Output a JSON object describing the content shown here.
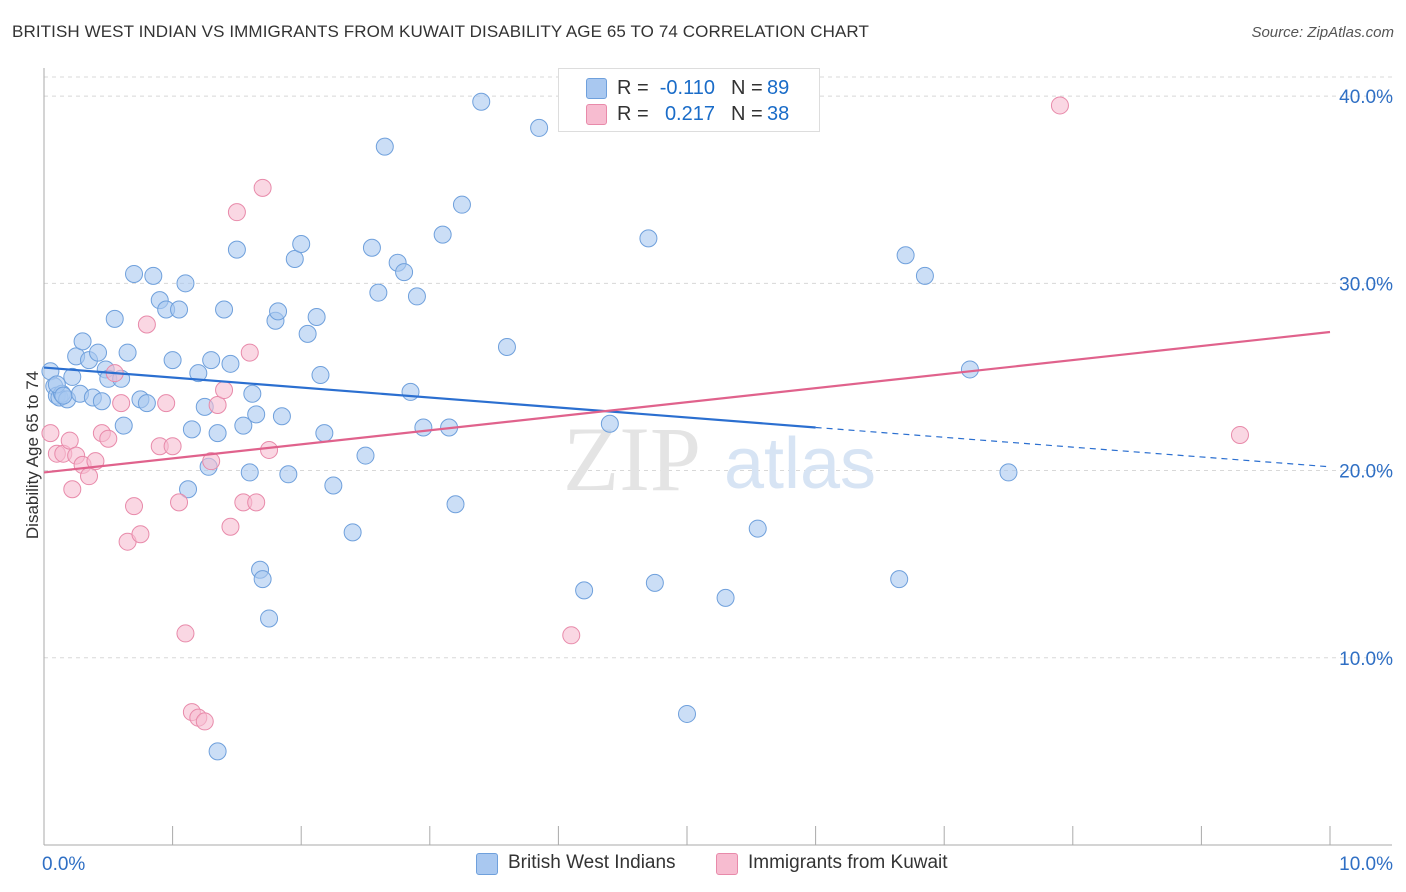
{
  "title": "BRITISH WEST INDIAN VS IMMIGRANTS FROM KUWAIT DISABILITY AGE 65 TO 74 CORRELATION CHART",
  "source": "Source: ZipAtlas.com",
  "watermark": {
    "zip": "ZIP",
    "atlas": "atlas"
  },
  "legend": {
    "rows": [
      {
        "r_label": "R =",
        "r_value": "-0.110",
        "n_label": "N =",
        "n_value": "89",
        "color": "#a9c8f0",
        "border": "#6fa0dc"
      },
      {
        "r_label": "R =",
        "r_value": "0.217",
        "n_label": "N =",
        "n_value": "38",
        "color": "#f7bcd0",
        "border": "#e88aaa"
      }
    ]
  },
  "bottom_legend": [
    {
      "label": "British West Indians",
      "color": "#a9c8f0",
      "border": "#6fa0dc"
    },
    {
      "label": "Immigrants from Kuwait",
      "color": "#f7bcd0",
      "border": "#e88aaa"
    }
  ],
  "chart_data": {
    "type": "scatter",
    "title": "BRITISH WEST INDIAN VS IMMIGRANTS FROM KUWAIT DISABILITY AGE 65 TO 74 CORRELATION CHART",
    "xlabel": "",
    "ylabel": "Disability Age 65 to 74",
    "xlim": [
      0,
      10
    ],
    "ylim": [
      0,
      41.5
    ],
    "x_tick_labels": [
      "0.0%",
      "10.0%"
    ],
    "y_ticks": [
      10,
      20,
      30,
      40
    ],
    "y_tick_labels": [
      "10.0%",
      "20.0%",
      "30.0%",
      "40.0%"
    ],
    "grid": true,
    "legend_position": "top-center",
    "series": [
      {
        "name": "British West Indians",
        "color": "#6fa0dc",
        "fill": "#a9c8f0",
        "trend": {
          "x": [
            0,
            6
          ],
          "y": [
            25.5,
            22.3
          ],
          "dashed_extension": {
            "x": [
              6,
              10
            ],
            "y": [
              22.3,
              20.2
            ]
          },
          "color": "#2b6fd0"
        },
        "points": [
          [
            0.05,
            25.3
          ],
          [
            0.08,
            24.5
          ],
          [
            0.1,
            24.0
          ],
          [
            0.12,
            23.9
          ],
          [
            0.14,
            24.1
          ],
          [
            0.18,
            23.8
          ],
          [
            0.22,
            25.0
          ],
          [
            0.25,
            26.1
          ],
          [
            0.28,
            24.1
          ],
          [
            0.3,
            26.9
          ],
          [
            0.35,
            25.9
          ],
          [
            0.38,
            23.9
          ],
          [
            0.42,
            26.3
          ],
          [
            0.45,
            23.7
          ],
          [
            0.48,
            25.4
          ],
          [
            0.5,
            24.9
          ],
          [
            0.55,
            28.1
          ],
          [
            0.6,
            24.9
          ],
          [
            0.62,
            22.4
          ],
          [
            0.65,
            26.3
          ],
          [
            0.7,
            30.5
          ],
          [
            0.75,
            23.8
          ],
          [
            0.8,
            23.6
          ],
          [
            0.85,
            30.4
          ],
          [
            0.9,
            29.1
          ],
          [
            0.95,
            28.6
          ],
          [
            1.0,
            25.9
          ],
          [
            1.05,
            28.6
          ],
          [
            1.1,
            30.0
          ],
          [
            1.12,
            19.0
          ],
          [
            1.15,
            22.2
          ],
          [
            1.2,
            25.2
          ],
          [
            1.25,
            23.4
          ],
          [
            1.28,
            20.2
          ],
          [
            1.3,
            25.9
          ],
          [
            1.35,
            22.0
          ],
          [
            1.4,
            28.6
          ],
          [
            1.45,
            25.7
          ],
          [
            1.5,
            31.8
          ],
          [
            1.55,
            22.4
          ],
          [
            1.6,
            19.9
          ],
          [
            1.62,
            24.1
          ],
          [
            1.65,
            23.0
          ],
          [
            1.68,
            14.7
          ],
          [
            1.7,
            14.2
          ],
          [
            1.75,
            12.1
          ],
          [
            1.8,
            28.0
          ],
          [
            1.82,
            28.5
          ],
          [
            1.85,
            22.9
          ],
          [
            1.9,
            19.8
          ],
          [
            1.95,
            31.3
          ],
          [
            2.0,
            32.1
          ],
          [
            2.05,
            27.3
          ],
          [
            2.12,
            28.2
          ],
          [
            2.15,
            25.1
          ],
          [
            2.18,
            22.0
          ],
          [
            2.25,
            19.2
          ],
          [
            2.4,
            16.7
          ],
          [
            2.5,
            20.8
          ],
          [
            2.55,
            31.9
          ],
          [
            2.6,
            29.5
          ],
          [
            2.65,
            37.3
          ],
          [
            2.75,
            31.1
          ],
          [
            2.8,
            30.6
          ],
          [
            2.85,
            24.2
          ],
          [
            2.9,
            29.3
          ],
          [
            3.1,
            32.6
          ],
          [
            3.15,
            22.3
          ],
          [
            3.2,
            18.2
          ],
          [
            3.25,
            34.2
          ],
          [
            3.4,
            39.7
          ],
          [
            3.6,
            26.6
          ],
          [
            3.85,
            38.3
          ],
          [
            4.2,
            13.6
          ],
          [
            4.4,
            22.5
          ],
          [
            4.7,
            32.4
          ],
          [
            4.75,
            14.0
          ],
          [
            5.0,
            7.0
          ],
          [
            5.3,
            13.2
          ],
          [
            5.55,
            16.9
          ],
          [
            6.65,
            14.2
          ],
          [
            6.7,
            31.5
          ],
          [
            6.85,
            30.4
          ],
          [
            7.2,
            25.4
          ],
          [
            7.5,
            19.9
          ],
          [
            0.1,
            24.6
          ],
          [
            0.15,
            24.0
          ],
          [
            1.35,
            5.0
          ],
          [
            2.95,
            22.3
          ]
        ]
      },
      {
        "name": "Immigrants from Kuwait",
        "color": "#e88aaa",
        "fill": "#f7bcd0",
        "trend": {
          "x": [
            0,
            10
          ],
          "y": [
            19.9,
            27.4
          ],
          "color": "#e0628c"
        },
        "points": [
          [
            0.05,
            22.0
          ],
          [
            0.1,
            20.9
          ],
          [
            0.15,
            20.9
          ],
          [
            0.2,
            21.6
          ],
          [
            0.22,
            19.0
          ],
          [
            0.25,
            20.8
          ],
          [
            0.3,
            20.3
          ],
          [
            0.35,
            19.7
          ],
          [
            0.4,
            20.5
          ],
          [
            0.45,
            22.0
          ],
          [
            0.5,
            21.7
          ],
          [
            0.55,
            25.2
          ],
          [
            0.6,
            23.6
          ],
          [
            0.65,
            16.2
          ],
          [
            0.7,
            18.1
          ],
          [
            0.75,
            16.6
          ],
          [
            0.8,
            27.8
          ],
          [
            0.9,
            21.3
          ],
          [
            0.95,
            23.6
          ],
          [
            1.0,
            21.3
          ],
          [
            1.05,
            18.3
          ],
          [
            1.1,
            11.3
          ],
          [
            1.15,
            7.1
          ],
          [
            1.2,
            6.8
          ],
          [
            1.25,
            6.6
          ],
          [
            1.3,
            20.5
          ],
          [
            1.35,
            23.5
          ],
          [
            1.4,
            24.3
          ],
          [
            1.45,
            17.0
          ],
          [
            1.5,
            33.8
          ],
          [
            1.55,
            18.3
          ],
          [
            1.6,
            26.3
          ],
          [
            1.65,
            18.3
          ],
          [
            1.7,
            35.1
          ],
          [
            1.75,
            21.1
          ],
          [
            4.1,
            11.2
          ],
          [
            7.9,
            39.5
          ],
          [
            9.3,
            21.9
          ]
        ]
      }
    ]
  }
}
